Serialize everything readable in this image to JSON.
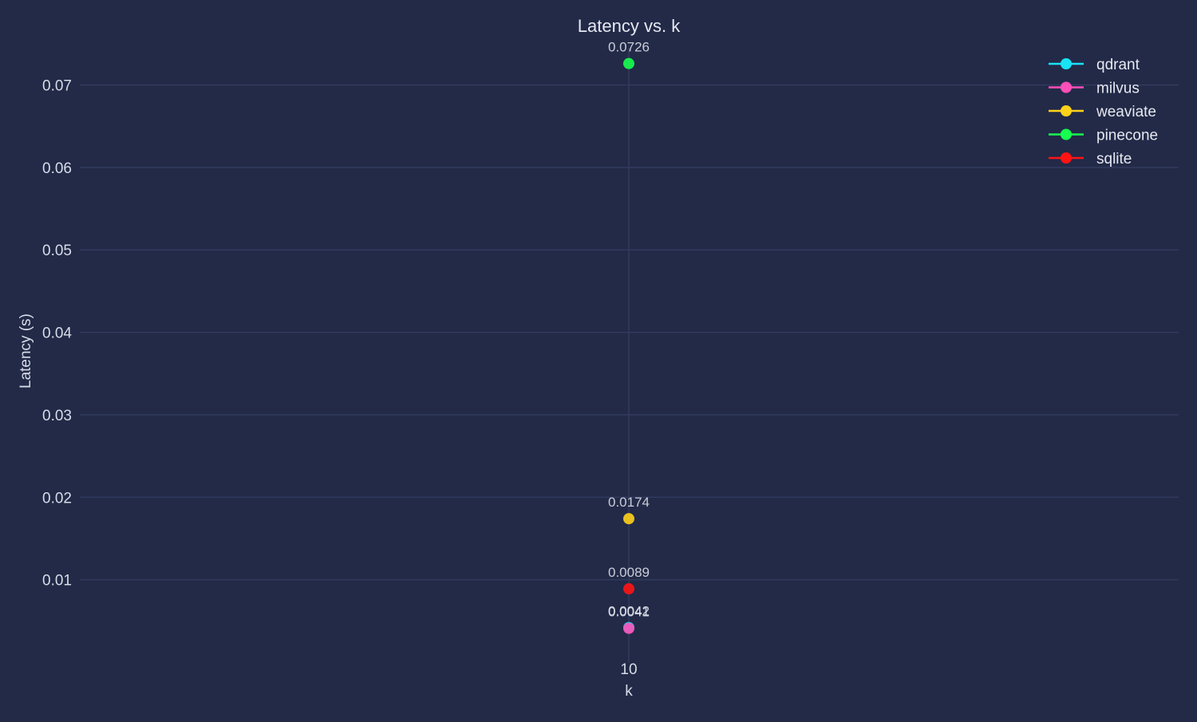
{
  "background": "#222a48",
  "chart_data": {
    "type": "scatter",
    "title": "Latency vs. k",
    "xlabel": "k",
    "ylabel": "Latency (s)",
    "x": [
      10
    ],
    "x_ticks": [
      10
    ],
    "ylim": [
      0,
      0.0745
    ],
    "y_ticks": [
      0.01,
      0.02,
      0.03,
      0.04,
      0.05,
      0.06,
      0.07
    ],
    "y_tick_labels": [
      "0.01",
      "0.02",
      "0.03",
      "0.04",
      "0.05",
      "0.06",
      "0.07"
    ],
    "grid": true,
    "legend_position": "top-right",
    "series": [
      {
        "name": "qdrant",
        "color": "#19e3f5",
        "x": [
          10
        ],
        "y": [
          0.0042
        ],
        "labels": [
          "0.0042"
        ]
      },
      {
        "name": "milvus",
        "color": "#ff4fb8",
        "x": [
          10
        ],
        "y": [
          0.0041
        ],
        "labels": [
          "0.0041"
        ]
      },
      {
        "name": "weaviate",
        "color": "#ffd21a",
        "x": [
          10
        ],
        "y": [
          0.0174
        ],
        "labels": [
          "0.0174"
        ]
      },
      {
        "name": "pinecone",
        "color": "#17ff4f",
        "x": [
          10
        ],
        "y": [
          0.0726
        ],
        "labels": [
          "0.0726"
        ]
      },
      {
        "name": "sqlite",
        "color": "#ff1414",
        "x": [
          10
        ],
        "y": [
          0.0089
        ],
        "labels": [
          "0.0089"
        ]
      }
    ]
  }
}
